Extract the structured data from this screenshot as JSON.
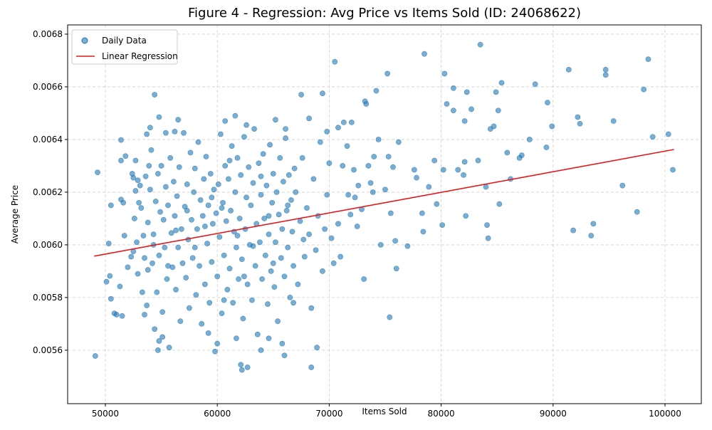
{
  "chart_data": {
    "type": "scatter",
    "title": "Figure 4 - Regression: Avg Price vs Items Sold (ID: 24068622)",
    "xlabel": "Items Sold",
    "ylabel": "Average Price",
    "xlim": [
      46629,
      103244
    ],
    "ylim": [
      0.005397,
      0.006835
    ],
    "xticks": [
      50000,
      60000,
      70000,
      80000,
      90000,
      100000
    ],
    "yticks": [
      0.0056,
      0.0058,
      {
        "value": 0.006,
        "label": "0.0060"
      },
      0.0062,
      0.0064,
      0.0066,
      0.0068
    ],
    "grid": true,
    "legend": "upper-left",
    "series": [
      {
        "name": "Daily Data",
        "style": "marker",
        "color": "#1f77b4",
        "x": [
          52400,
          52500,
          52600,
          52700,
          52800,
          52900,
          52500,
          52700,
          52900,
          53000,
          53200,
          53300,
          53400,
          53500,
          53600,
          53700,
          53800,
          53900,
          53500,
          53800,
          54000,
          54100,
          54200,
          54300,
          54400,
          54500,
          54600,
          54700,
          54800,
          54900,
          55000,
          55100,
          55200,
          55300,
          55400,
          55500,
          55600,
          55700,
          55800,
          55900,
          56000,
          56100,
          56200,
          56300,
          56400,
          56500,
          56600,
          56700,
          56800,
          56900,
          57000,
          57100,
          57200,
          57300,
          57400,
          57500,
          57600,
          57700,
          57800,
          57900,
          58000,
          58100,
          58200,
          58300,
          58400,
          58500,
          58600,
          58700,
          58800,
          58900,
          59000,
          59100,
          59200,
          59300,
          59400,
          59500,
          59600,
          59700,
          59800,
          59900,
          60000,
          60100,
          60200,
          60300,
          60400,
          60500,
          60600,
          60700,
          60800,
          60900,
          61000,
          61100,
          61200,
          61300,
          61400,
          61500,
          61600,
          61700,
          61800,
          61900,
          62000,
          62100,
          62200,
          62300,
          62400,
          62500,
          62600,
          62700,
          62800,
          62900,
          63000,
          63100,
          63200,
          63300,
          63400,
          63500,
          63600,
          63700,
          63800,
          63900,
          64000,
          64100,
          64200,
          64300,
          64400,
          64500,
          64600,
          64700,
          64800,
          64900,
          65000,
          65100,
          65200,
          65300,
          65400,
          65500,
          65600,
          65700,
          65800,
          65900,
          66000,
          66100,
          66200,
          66300,
          66400,
          66500,
          66600,
          66700,
          66800,
          66900,
          67000,
          67200,
          67400,
          67600,
          67800,
          68000,
          68200,
          68400,
          68600,
          68800,
          69000,
          69200,
          69400,
          69600,
          69800,
          70000,
          70200,
          70400,
          70800,
          71000,
          53100,
          55600,
          57300,
          58900,
          60400,
          61800,
          63200,
          64600,
          66300,
          67700,
          54300,
          56300,
          59500,
          62400,
          65000,
          58000,
          61100,
          63900,
          66800,
          60600,
          54700,
          54800,
          55100,
          59200,
          60000,
          62100,
          62200,
          62700,
          63900,
          65800,
          68400,
          68900,
          66000,
          64600,
          61700,
          52300,
          54400,
          54800,
          56500,
          60700,
          61600,
          62600,
          65200,
          66100,
          67500,
          68200,
          69400,
          69800,
          56200,
          55400,
          53700,
          54000,
          49100,
          49300,
          50100,
          50300,
          50400,
          50500,
          50500,
          50800,
          51000,
          51300,
          51400,
          51400,
          51400,
          51500,
          51600,
          51700,
          51800,
          52000,
          70500,
          70800,
          71200,
          71300,
          71600,
          71700,
          71900,
          72000,
          72200,
          72300,
          72500,
          72600,
          72900,
          73100,
          73200,
          73300,
          73500,
          73700,
          73900,
          74000,
          74200,
          74400,
          74600,
          75000,
          75200,
          75300,
          75400,
          75500,
          75700,
          75900,
          76000,
          76200,
          77000,
          77600,
          77800,
          78300,
          78400,
          78500,
          78900,
          79400,
          79600,
          80100,
          80200,
          80300,
          80500,
          81100,
          81100,
          81500,
          82000,
          82100,
          82100,
          82200,
          82300,
          82700,
          83300,
          83500,
          84000,
          84100,
          84200,
          84400,
          84700,
          84900,
          85100,
          85200,
          85400,
          85900,
          86200,
          87000,
          87200,
          87900,
          88400,
          89400,
          89500,
          89900,
          91400,
          91800,
          92200,
          92400,
          93400,
          93600,
          94700,
          94700,
          95400,
          96200,
          97500,
          98100,
          98500,
          98900,
          100300,
          100700
        ],
        "values": [
          0.00627,
          0.006255,
          0.0061,
          0.00632,
          0.00601,
          0.00589,
          0.005975,
          0.006205,
          0.006245,
          0.00616,
          0.00614,
          0.00582,
          0.006035,
          0.00595,
          0.00626,
          0.00577,
          0.006085,
          0.0063,
          0.005735,
          0.005905,
          0.00621,
          0.00636,
          0.00593,
          0.00604,
          0.00568,
          0.006165,
          0.00582,
          0.00627,
          0.00596,
          0.006125,
          0.0063,
          0.005745,
          0.006095,
          0.00599,
          0.00622,
          0.00587,
          0.00615,
          0.00561,
          0.00633,
          0.006045,
          0.005915,
          0.00624,
          0.00611,
          0.00583,
          0.006185,
          0.00599,
          0.006295,
          0.00571,
          0.00606,
          0.00593,
          0.006425,
          0.006145,
          0.005875,
          0.00623,
          0.00602,
          0.00576,
          0.00635,
          0.006095,
          0.00595,
          0.0062,
          0.00629,
          0.00581,
          0.00606,
          0.00639,
          0.00592,
          0.00617,
          0.0057,
          0.00611,
          0.00625,
          0.00585,
          0.006335,
          0.006005,
          0.00615,
          0.00578,
          0.00627,
          0.005935,
          0.00608,
          0.00621,
          0.005595,
          0.00612,
          0.00588,
          0.00623,
          0.00603,
          0.00642,
          0.00574,
          0.00616,
          0.00596,
          0.0063,
          0.00609,
          0.00583,
          0.00625,
          0.00591,
          0.00613,
          0.006375,
          0.00578,
          0.00605,
          0.0062,
          0.00599,
          0.00633,
          0.00587,
          0.0061,
          0.006265,
          0.005945,
          0.00572,
          0.00641,
          0.00606,
          0.00618,
          0.00585,
          0.006295,
          0.006,
          0.00615,
          0.00579,
          0.006235,
          0.00644,
          0.00592,
          0.00608,
          0.00566,
          0.00631,
          0.00601,
          0.00619,
          0.00587,
          0.006345,
          0.0061,
          0.00596,
          0.006225,
          0.005775,
          0.00604,
          0.00638,
          0.0059,
          0.00616,
          0.00627,
          0.00584,
          0.00601,
          0.0062,
          0.00571,
          0.006115,
          0.00633,
          0.00595,
          0.00606,
          0.00624,
          0.00588,
          0.006405,
          0.00613,
          0.00599,
          0.006265,
          0.0058,
          0.00617,
          0.00605,
          0.00592,
          0.00629,
          0.0062,
          0.00585,
          0.00609,
          0.00633,
          0.005955,
          0.00614,
          0.00604,
          0.00576,
          0.00625,
          0.00598,
          0.00611,
          0.00639,
          0.0059,
          0.00606,
          0.00619,
          0.00631,
          0.006025,
          0.00593,
          0.00608,
          0.005955,
          0.006225,
          0.00592,
          0.00613,
          0.00607,
          0.00614,
          0.006035,
          0.005995,
          0.00611,
          0.00615,
          0.00602,
          0.006,
          0.006055,
          0.00618,
          0.00588,
          0.00593,
          0.00599,
          0.00632,
          0.00626,
          0.00578,
          0.00579,
          0.0056,
          0.005635,
          0.00565,
          0.005665,
          0.005625,
          0.005545,
          0.005525,
          0.005535,
          0.0056,
          0.005625,
          0.005535,
          0.00561,
          0.00558,
          0.005645,
          0.005645,
          0.005955,
          0.00657,
          0.006485,
          0.006475,
          0.00647,
          0.00649,
          0.006455,
          0.006475,
          0.00644,
          0.00657,
          0.00648,
          0.006575,
          0.00643,
          0.00643,
          0.006425,
          0.00642,
          0.006445,
          0.005578,
          0.006275,
          0.00586,
          0.006005,
          0.005882,
          0.005795,
          0.00615,
          0.00574,
          0.005735,
          0.005842,
          0.006398,
          0.00632,
          0.006172,
          0.00573,
          0.00616,
          0.006035,
          0.006337,
          0.005915,
          0.006695,
          0.006445,
          0.0063,
          0.006465,
          0.006375,
          0.00619,
          0.006115,
          0.006465,
          0.006285,
          0.00618,
          0.00607,
          0.006225,
          0.006135,
          0.00587,
          0.006545,
          0.006535,
          0.0063,
          0.006235,
          0.0062,
          0.006335,
          0.006585,
          0.0064,
          0.006,
          0.00621,
          0.00665,
          0.006335,
          0.005725,
          0.00612,
          0.006295,
          0.006015,
          0.00591,
          0.00639,
          0.005995,
          0.006285,
          0.006255,
          0.00612,
          0.00605,
          0.006725,
          0.00622,
          0.00632,
          0.006155,
          0.006075,
          0.006285,
          0.00665,
          0.006535,
          0.006595,
          0.00651,
          0.006285,
          0.006265,
          0.006315,
          0.00647,
          0.00611,
          0.00658,
          0.006515,
          0.00632,
          0.00676,
          0.00622,
          0.006075,
          0.006025,
          0.00644,
          0.00645,
          0.00658,
          0.00651,
          0.006155,
          0.006615,
          0.00635,
          0.00625,
          0.00633,
          0.00634,
          0.0064,
          0.00661,
          0.00637,
          0.00654,
          0.00645,
          0.006665,
          0.006055,
          0.006485,
          0.00646,
          0.006035,
          0.00608,
          0.006665,
          0.006645,
          0.00647,
          0.006225,
          0.006125,
          0.00659,
          0.006705,
          0.00641,
          0.00642,
          0.006285
        ]
      },
      {
        "name": "Linear Regression",
        "style": "line",
        "color": "#e31a1c",
        "x": [
          49000,
          100800
        ],
        "values": [
          0.005957,
          0.006362
        ]
      }
    ]
  }
}
